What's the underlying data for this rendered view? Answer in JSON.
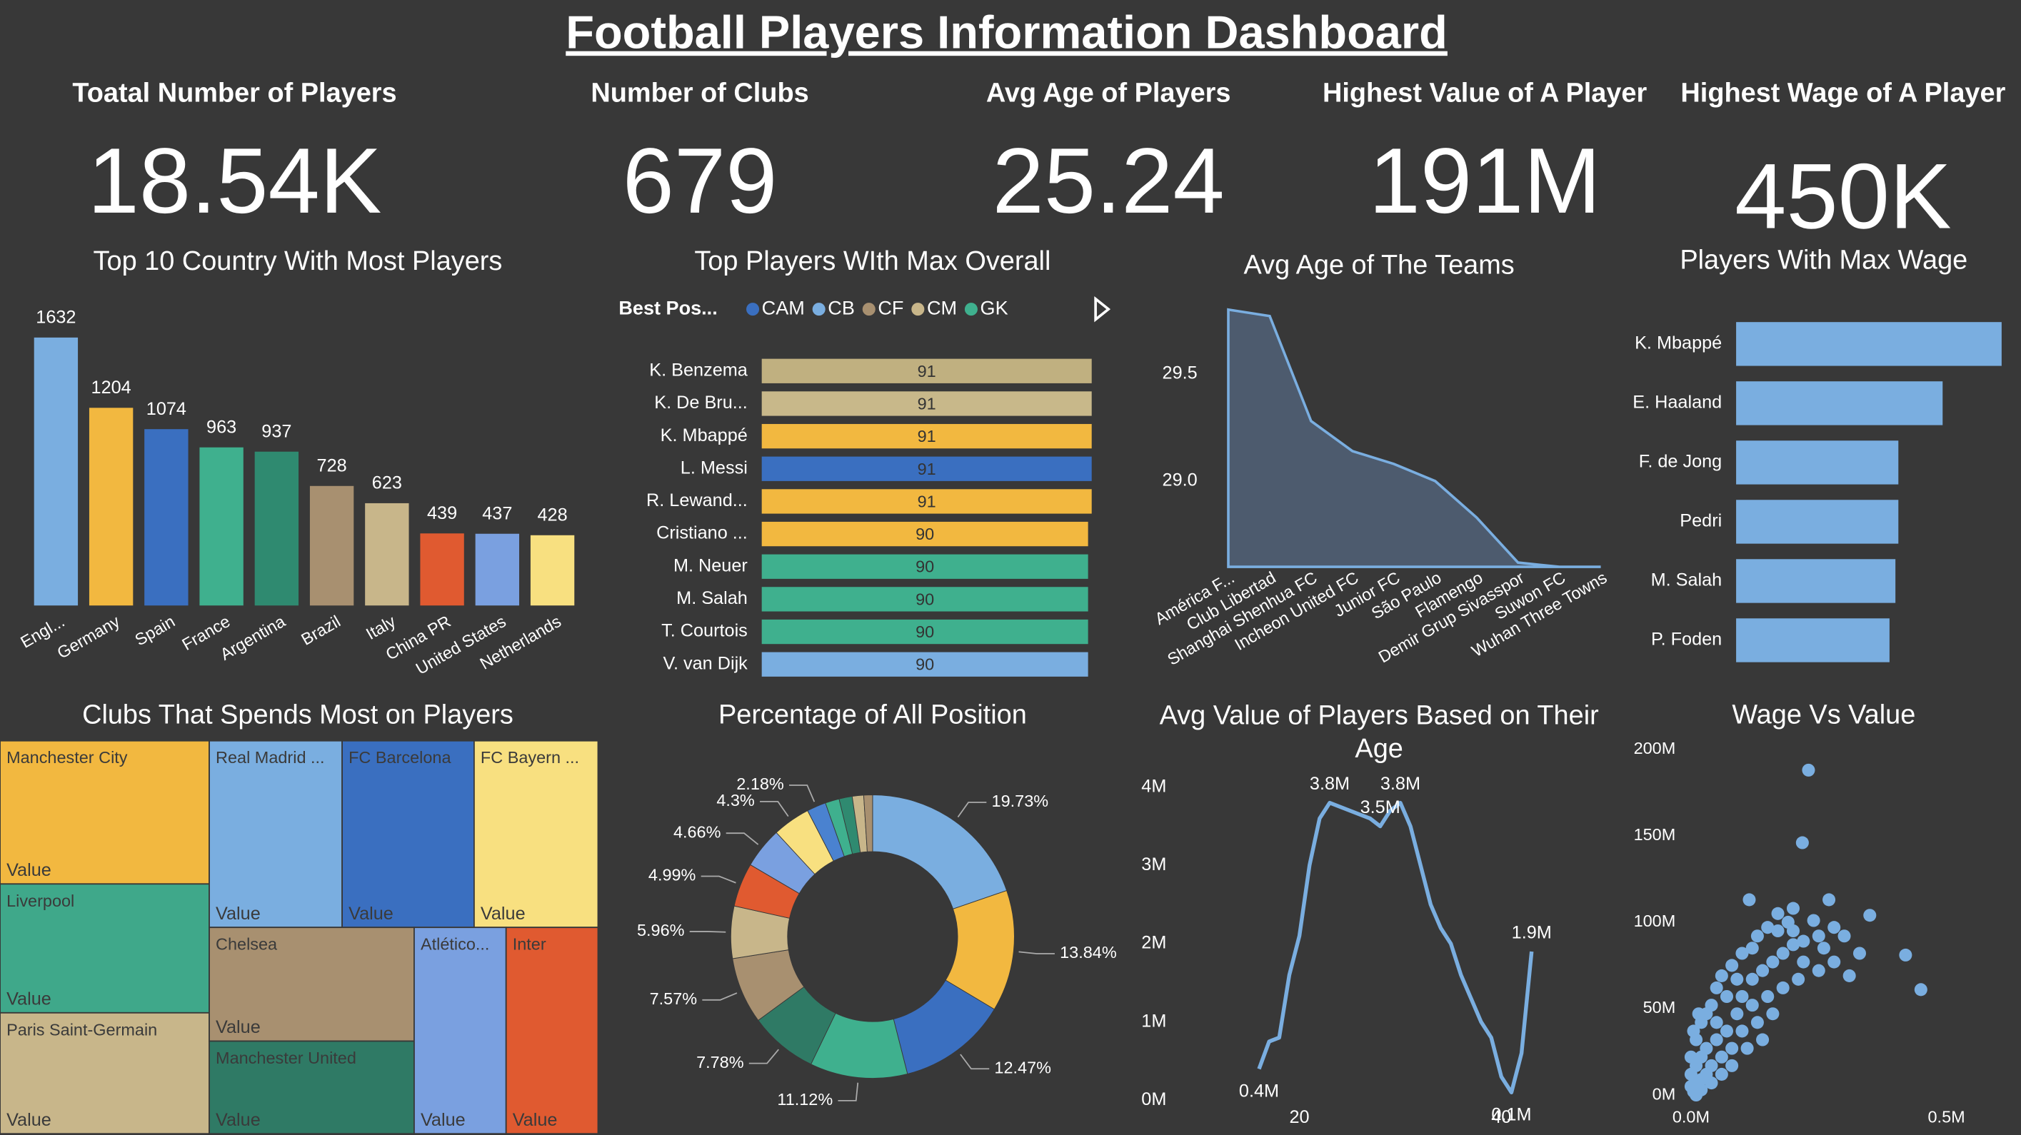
{
  "title": "Football Players Information Dashboard",
  "kpis": [
    {
      "label": "Toatal Number of Players",
      "value": "18.54K"
    },
    {
      "label": "Number of Clubs",
      "value": "679"
    },
    {
      "label": "Avg Age of Players",
      "value": "25.24"
    },
    {
      "label": "Highest Value of A Player",
      "value": "191M"
    },
    {
      "label": "Highest Wage of A Player",
      "value": "450K"
    }
  ],
  "chart_data": [
    {
      "type": "bar",
      "title": "Top 10 Country With Most Players",
      "categories": [
        "Engl...",
        "Germany",
        "Spain",
        "France",
        "Argentina",
        "Brazil",
        "Italy",
        "China PR",
        "United States",
        "Netherlands"
      ],
      "values": [
        1632,
        1204,
        1074,
        963,
        937,
        728,
        623,
        439,
        437,
        428
      ],
      "colors": [
        "#7aaee0",
        "#f2b840",
        "#3a6fc0",
        "#3fb08e",
        "#2f8a70",
        "#a89070",
        "#c8b68a",
        "#e05a30",
        "#7aa0e0",
        "#f8e080"
      ]
    },
    {
      "type": "hbar",
      "title": "Top Players WIth Max Overall",
      "legend_title": "Best Pos...",
      "legend": [
        {
          "name": "CAM",
          "color": "#3a6fc0"
        },
        {
          "name": "CB",
          "color": "#7aaee0"
        },
        {
          "name": "CF",
          "color": "#a89070"
        },
        {
          "name": "CM",
          "color": "#c8b68a"
        },
        {
          "name": "GK",
          "color": "#3fb08e"
        }
      ],
      "categories": [
        "K. Benzema",
        "K. De Bru...",
        "K. Mbappé",
        "L. Messi",
        "R. Lewand...",
        "Cristiano ...",
        "M. Neuer",
        "M. Salah",
        "T. Courtois",
        "V. van Dijk"
      ],
      "values": [
        91,
        91,
        91,
        91,
        91,
        90,
        90,
        90,
        90,
        90
      ],
      "colors": [
        "#c0b080",
        "#c8b88a",
        "#f2b840",
        "#3a6fc0",
        "#f2b840",
        "#f2b840",
        "#3fb08e",
        "#3fb08e",
        "#3fb08e",
        "#7aaee0"
      ],
      "data_labels": true
    },
    {
      "type": "area",
      "title": "Avg Age of The Teams",
      "categories": [
        "América F...",
        "Club Libertad",
        "Shanghai Shenhua FC",
        "Incheon United FC",
        "Junior FC",
        "São Paulo",
        "Flamengo",
        "Demir Grup Sivasspor",
        "Suwon FC",
        "Wuhan Three Towns"
      ],
      "values": [
        29.8,
        29.77,
        29.28,
        29.14,
        29.08,
        29.0,
        28.83,
        28.62,
        28.6,
        28.6
      ],
      "ylim": [
        28.6,
        29.82
      ],
      "yticks": [
        {
          "value": 29,
          "label": "29.0"
        },
        {
          "value": 29.5,
          "label": "29.5"
        }
      ],
      "color": "#7aaee0",
      "fill": "#4d5b6e"
    },
    {
      "type": "hbar",
      "title": "Players With Max Wage",
      "categories": [
        "K. Mbappé",
        "E. Haaland",
        "F. de Jong",
        "Pedri",
        "M. Salah",
        "P. Foden"
      ],
      "values": [
        450000,
        350000,
        275000,
        275000,
        270000,
        260000
      ],
      "colors": [
        "#7aaee0",
        "#7aaee0",
        "#7aaee0",
        "#7aaee0",
        "#7aaee0",
        "#7aaee0"
      ],
      "data_labels": false
    },
    {
      "type": "treemap",
      "title": "Clubs That Spends Most on Players",
      "categories": [
        "Manchester City",
        "Liverpool",
        "Paris Saint-Germain",
        "Real Madrid ...",
        "FC Barcelona",
        "FC Bayern ...",
        "Chelsea",
        "Manchester United",
        "Atlético...",
        "Inter"
      ],
      "values": [
        18.0,
        16.2,
        15.2,
        14.9,
        14.8,
        13.9,
        14.0,
        11.4,
        11.4,
        11.4
      ],
      "colors": [
        "#f2b840",
        "#3fa88a",
        "#c8b68a",
        "#7aaee0",
        "#3a6fc0",
        "#f8e080",
        "#a89070",
        "#2f7a65",
        "#7aa0e0",
        "#e05a30"
      ],
      "value_label": "Value"
    },
    {
      "type": "donut",
      "title": "Percentage of All Position",
      "values": [
        19.73,
        13.84,
        12.47,
        11.12,
        7.78,
        7.57,
        5.96,
        4.99,
        4.66,
        4.3,
        2.18,
        1.6,
        1.5,
        1.3,
        1.0
      ],
      "value_labels": [
        "19.73%",
        "13.84%",
        "12.47%",
        "11.12%",
        "7.78%",
        "7.57%",
        "5.96%",
        "4.99%",
        "4.66%",
        "4.3%",
        "2.18%",
        null,
        null,
        null,
        null
      ],
      "colors": [
        "#7aaee0",
        "#f2b840",
        "#3a6fc0",
        "#3fb08e",
        "#2f7a65",
        "#a89070",
        "#c8b68a",
        "#e05a30",
        "#7aa0e0",
        "#f8e080",
        "#4a82d0",
        "#3fb08e",
        "#2f8a70",
        "#c8b68a",
        "#a89070"
      ]
    },
    {
      "type": "line",
      "title": "Avg Value of Players Based on Their Age",
      "x": [
        16,
        17,
        18,
        19,
        20,
        21,
        22,
        23,
        24,
        25,
        26,
        27,
        28,
        29,
        30,
        31,
        32,
        33,
        34,
        35,
        36,
        37,
        38,
        39,
        40,
        41,
        42,
        43
      ],
      "values": [
        0.4,
        0.75,
        0.8,
        1.6,
        2.1,
        3.0,
        3.6,
        3.8,
        3.75,
        3.7,
        3.65,
        3.6,
        3.5,
        3.7,
        3.8,
        3.5,
        3.0,
        2.5,
        2.2,
        2.0,
        1.6,
        1.3,
        1.0,
        0.8,
        0.3,
        0.1,
        0.6,
        1.9
      ],
      "value_labels": [
        "0.4M",
        null,
        null,
        null,
        null,
        null,
        null,
        "3.8M",
        null,
        null,
        null,
        null,
        "3.5M",
        null,
        "3.8M",
        null,
        null,
        null,
        null,
        null,
        null,
        null,
        null,
        null,
        null,
        "0.1M",
        null,
        "1.9M"
      ],
      "xlim": [
        15,
        45
      ],
      "xticks": [
        20,
        40
      ],
      "ylim": [
        0,
        4
      ],
      "yticks": [
        {
          "value": 0,
          "label": "0M"
        },
        {
          "value": 1,
          "label": "1M"
        },
        {
          "value": 2,
          "label": "2M"
        },
        {
          "value": 3,
          "label": "3M"
        },
        {
          "value": 4,
          "label": "4M"
        }
      ],
      "color": "#7aaee0"
    },
    {
      "type": "scatter",
      "title": "Wage Vs Value",
      "x": [
        0.23,
        0.218,
        0.35,
        0.42,
        0.45,
        0.31,
        0.27,
        0.114,
        0.2,
        0.19,
        0.24,
        0.25,
        0.22,
        0.17,
        0.15,
        0.13,
        0.12,
        0.1,
        0.08,
        0.09,
        0.06,
        0.05,
        0.07,
        0.04,
        0.03,
        0.02,
        0.05,
        0.1,
        0.12,
        0.14,
        0.16,
        0.18,
        0.2,
        0.22,
        0.26,
        0.28,
        0.3,
        0.21,
        0.18,
        0.15,
        0.12,
        0.09,
        0.07,
        0.05,
        0.03,
        0.02,
        0.01,
        0.04,
        0.06,
        0.08,
        0.1,
        0.13,
        0.16,
        0.01,
        0.02,
        0.03,
        0.005,
        0.01,
        0.02,
        0.04,
        0.06,
        0.08,
        0.11,
        0.14,
        0,
        0,
        0,
        0.01,
        0.005,
        0.015,
        0.25,
        0.28,
        0.33,
        0.17,
        0.2
      ],
      "y": [
        191,
        149,
        107,
        84,
        64,
        72,
        116,
        116,
        111,
        103,
        104,
        95,
        92,
        98,
        100,
        95,
        88,
        85,
        78,
        70,
        72,
        65,
        60,
        55,
        50,
        45,
        45,
        60,
        70,
        75,
        80,
        85,
        90,
        80,
        88,
        100,
        95,
        70,
        65,
        60,
        55,
        50,
        40,
        35,
        30,
        25,
        20,
        20,
        25,
        30,
        40,
        45,
        50,
        10,
        12,
        15,
        5,
        3,
        6,
        10,
        15,
        20,
        30,
        35,
        8,
        15,
        25,
        35,
        40,
        50,
        75,
        80,
        85,
        108,
        98
      ],
      "xlim": [
        0,
        0.55
      ],
      "xticks": [
        {
          "value": 0,
          "label": "0.0M"
        },
        {
          "value": 0.5,
          "label": "0.5M"
        }
      ],
      "ylim": [
        0,
        205
      ],
      "yticks": [
        {
          "value": 0,
          "label": "0M"
        },
        {
          "value": 50,
          "label": "50M"
        },
        {
          "value": 100,
          "label": "100M"
        },
        {
          "value": 150,
          "label": "150M"
        },
        {
          "value": 200,
          "label": "200M"
        }
      ],
      "color": "#7aaee0"
    }
  ]
}
